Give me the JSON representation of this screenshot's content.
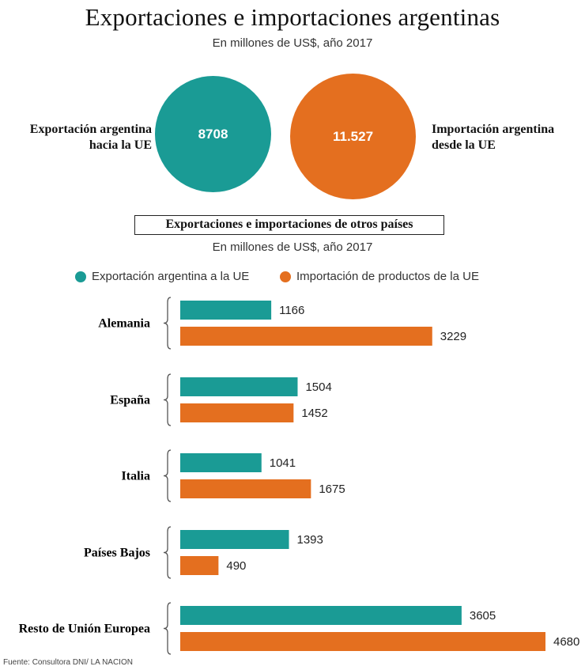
{
  "header": {
    "title": "Exportaciones e importaciones argentinas",
    "subtitle": "En millones de US$, año 2017"
  },
  "totals": {
    "export_label_line1": "Exportación argentina",
    "export_label_line2": "hacia la UE",
    "export_value": "8708",
    "import_label_line1": "Importación argentina",
    "import_label_line2": "desde la UE",
    "import_value": "11.527",
    "export_color": "#1a9b95",
    "import_color": "#e46f1f"
  },
  "section": {
    "title": "Exportaciones e importaciones de otros países",
    "subtitle": "En millones de US$, año 2017"
  },
  "footer": {
    "source": "Fuente: Consultora DNI/ LA NACION"
  },
  "chart_data": [
    {
      "type": "pie",
      "categories": [
        "Exportación argentina hacia la UE",
        "Importación argentina desde la UE"
      ],
      "values": [
        8708,
        11527
      ]
    },
    {
      "type": "bar",
      "orientation": "horizontal",
      "categories": [
        "Alemania",
        "España",
        "Italia",
        "Países Bajos",
        "Resto de Unión Europea"
      ],
      "series": [
        {
          "name": "Exportación argentina a la UE",
          "color": "#1a9b95",
          "values": [
            1166,
            1504,
            1041,
            1393,
            3605
          ]
        },
        {
          "name": "Importación de productos de la UE",
          "color": "#e46f1f",
          "values": [
            3229,
            1452,
            1675,
            490,
            4680
          ]
        }
      ],
      "legend": "top",
      "grid": false
    }
  ]
}
